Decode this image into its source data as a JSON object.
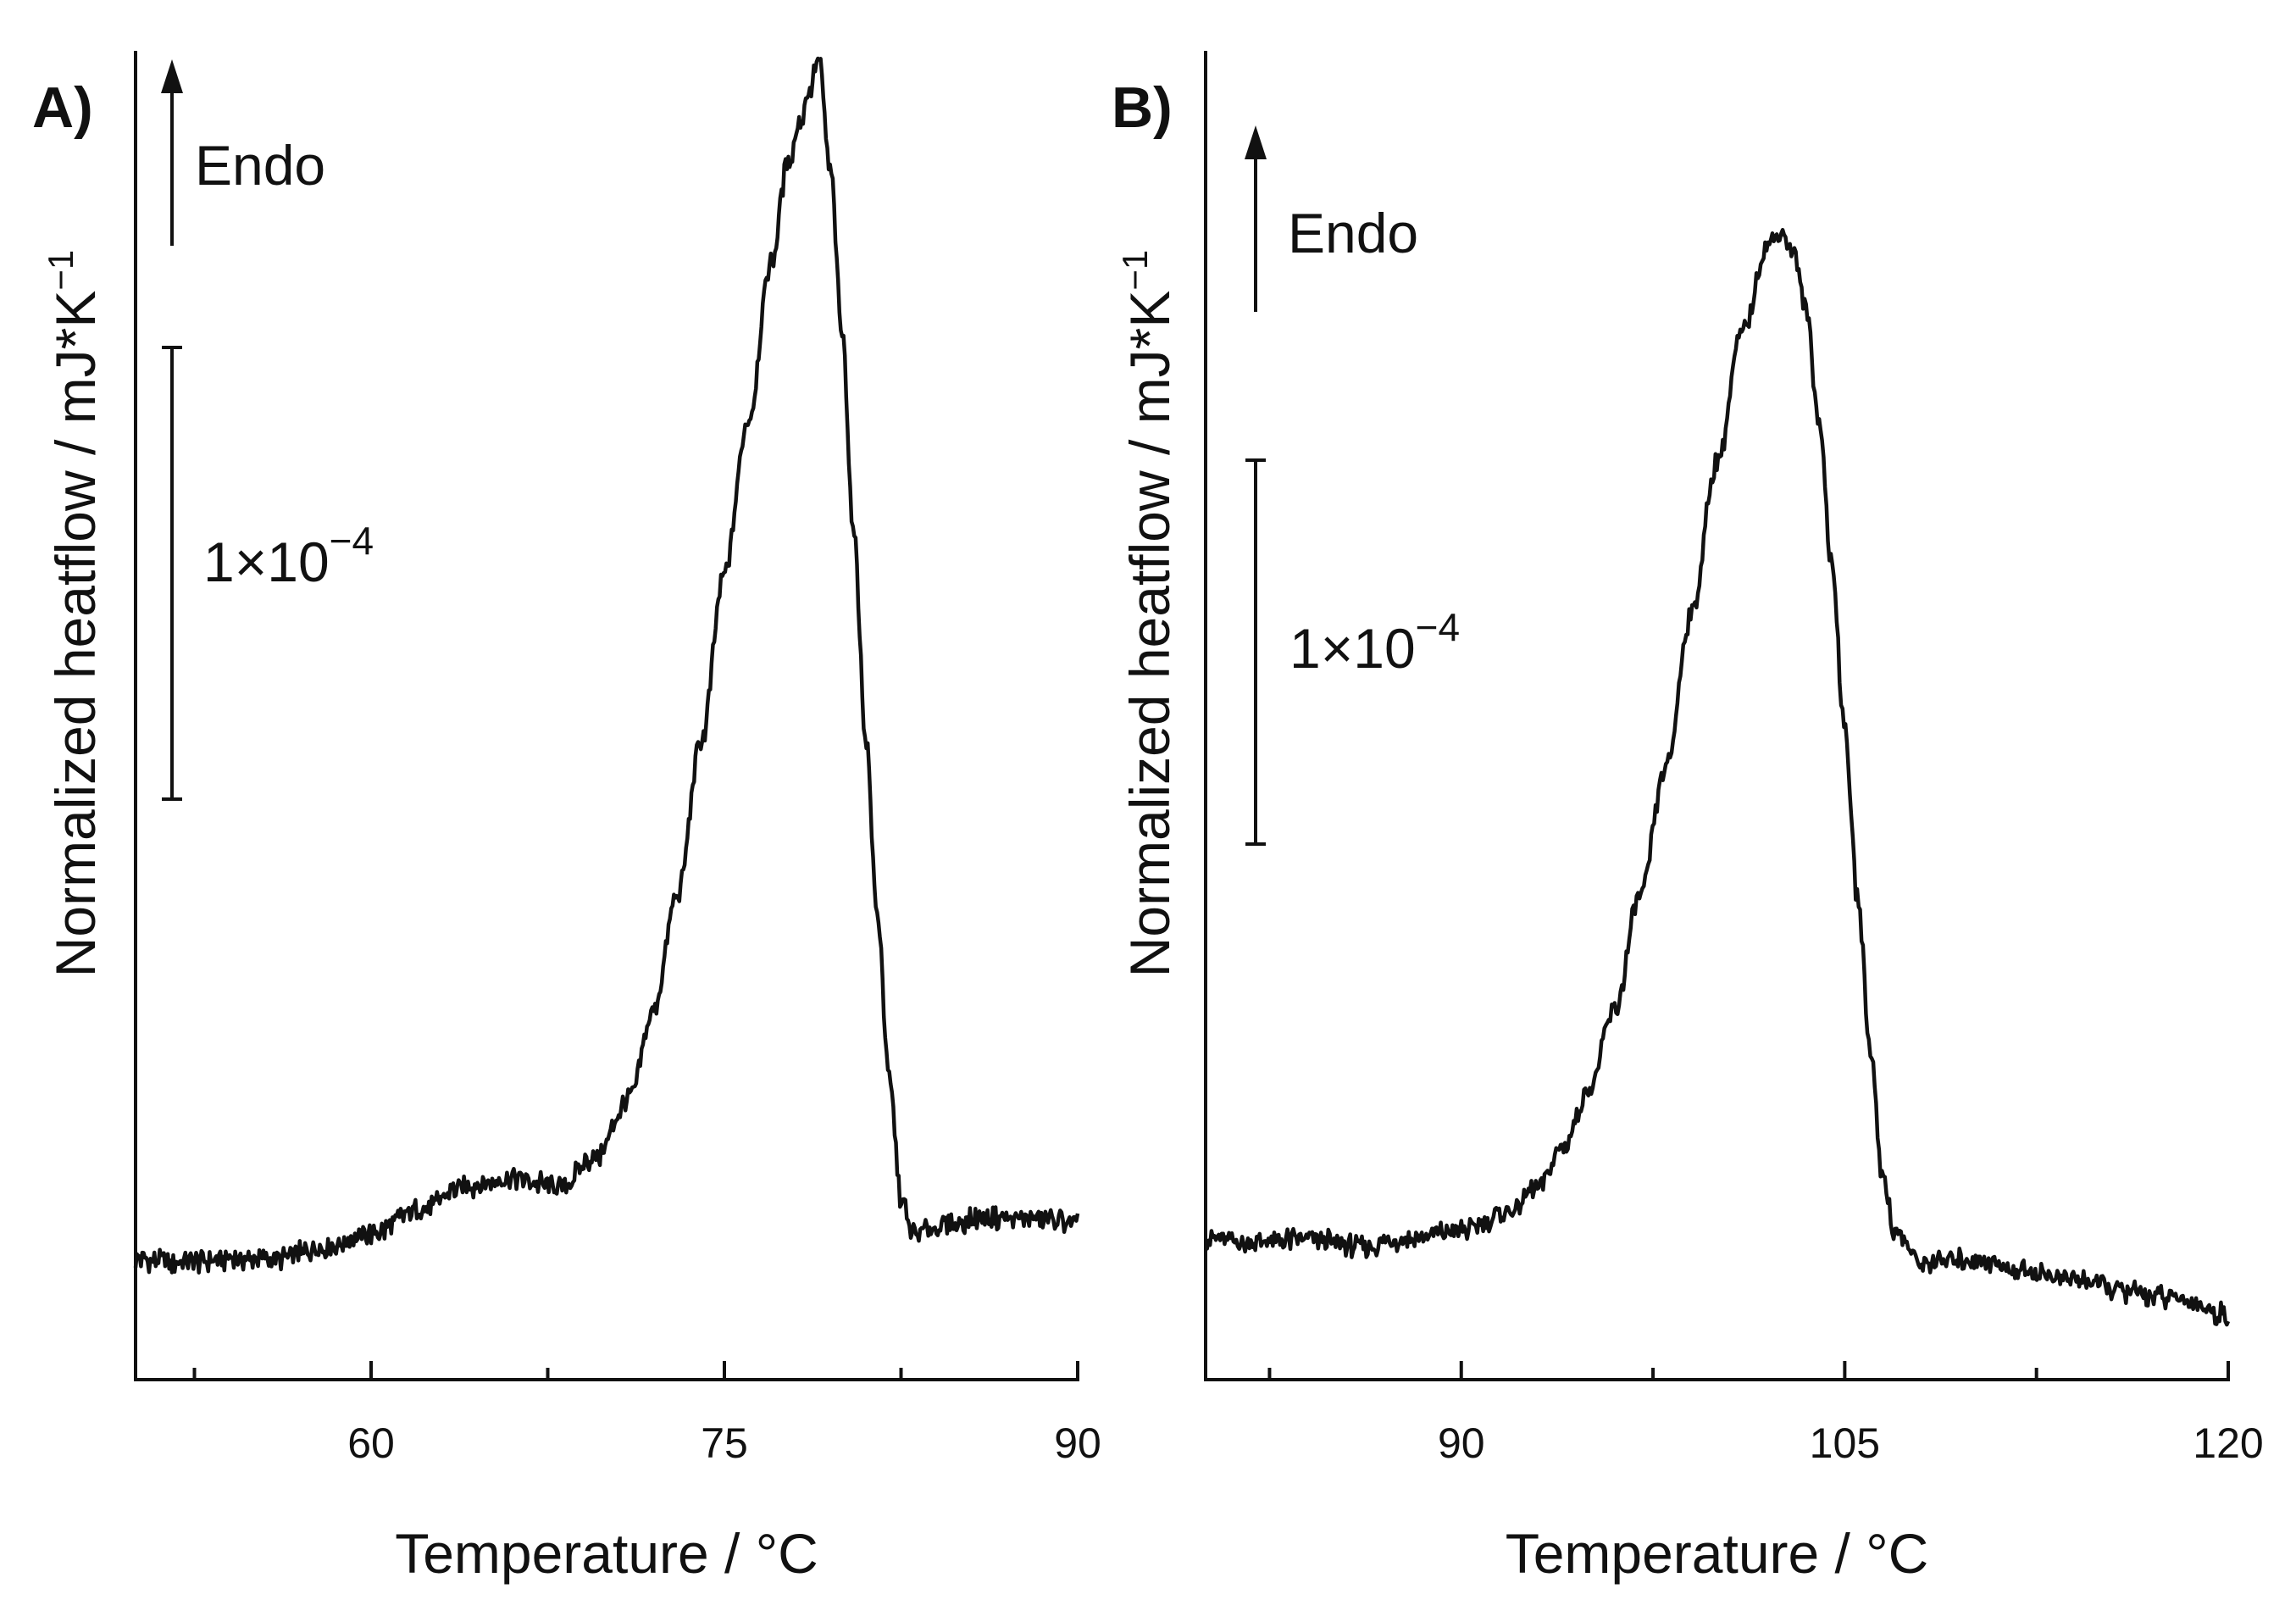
{
  "chart_data": [
    {
      "type": "line",
      "panel_label": "A)",
      "xlabel": "Temperature / °C",
      "ylabel": "Normalized heatflow / mJ*K",
      "ylabel_superscript": "−1",
      "xlim": [
        50,
        90
      ],
      "ylim": [
        -0.3,
        3.0
      ],
      "x_ticks_major": [
        60,
        75,
        90
      ],
      "x_ticks_minor": [
        52.5,
        67.5,
        82.5
      ],
      "y_tick_labels": false,
      "direction_label": "Endo",
      "scale_bar": {
        "mantissa": "1×10",
        "exponent": "−4",
        "value": 0.0001
      },
      "series": [
        {
          "x": [
            50,
            52,
            54,
            56,
            58,
            60,
            62,
            64,
            66,
            68,
            69.5,
            71,
            72,
            73,
            74,
            75,
            76,
            77,
            77.7,
            78.2,
            78.6,
            79,
            79.5,
            80,
            80.5,
            81,
            81.5,
            82,
            82.5,
            83,
            84,
            86,
            88,
            90
          ],
          "y": [
            0.0,
            -0.01,
            0.0,
            0.0,
            0.03,
            0.06,
            0.12,
            0.18,
            0.2,
            0.18,
            0.25,
            0.4,
            0.62,
            0.9,
            1.28,
            1.7,
            2.08,
            2.48,
            2.72,
            2.82,
            2.9,
            2.98,
            2.7,
            2.3,
            1.8,
            1.3,
            0.85,
            0.45,
            0.15,
            0.06,
            0.08,
            0.1,
            0.1,
            0.09
          ]
        }
      ]
    },
    {
      "type": "line",
      "panel_label": "B)",
      "xlabel": "Temperature / °C",
      "ylabel": "Normalized heatflow / mJ*K",
      "ylabel_superscript": "−1",
      "xlim": [
        80,
        120
      ],
      "ylim": [
        -0.3,
        3.0
      ],
      "x_ticks_major": [
        90,
        105,
        120
      ],
      "x_ticks_minor": [
        82.5,
        97.5,
        112.5
      ],
      "y_tick_labels": false,
      "direction_label": "Endo",
      "scale_bar": {
        "mantissa": "1×10",
        "exponent": "−4",
        "value": 0.0001
      },
      "series": [
        {
          "x": [
            80,
            82,
            84,
            86,
            88,
            90,
            92,
            93,
            94,
            95,
            96,
            97,
            98,
            99,
            100,
            101,
            102,
            102.5,
            103,
            103.5,
            104,
            104.5,
            105,
            105.5,
            106,
            106.5,
            107,
            108,
            110,
            112,
            114,
            116,
            118,
            120
          ],
          "y": [
            0.05,
            0.04,
            0.05,
            0.03,
            0.05,
            0.07,
            0.12,
            0.18,
            0.28,
            0.42,
            0.62,
            0.9,
            1.22,
            1.6,
            1.98,
            2.3,
            2.52,
            2.55,
            2.5,
            2.35,
            2.08,
            1.72,
            1.32,
            0.9,
            0.52,
            0.2,
            0.06,
            -0.01,
            0.0,
            -0.03,
            -0.05,
            -0.08,
            -0.1,
            -0.14
          ]
        }
      ]
    }
  ]
}
